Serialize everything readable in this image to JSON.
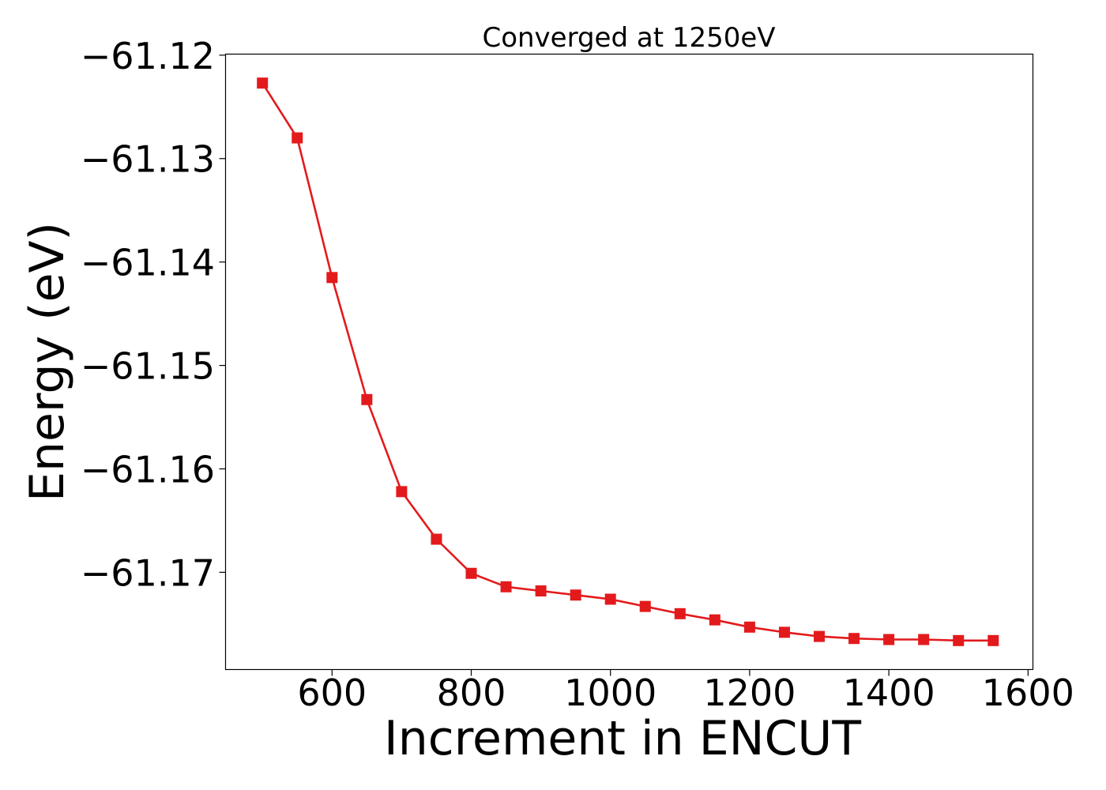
{
  "chart_data": {
    "type": "line",
    "title": "Converged at 1250eV",
    "xlabel": "Increment in ENCUT",
    "ylabel": "Energy (eV)",
    "xlim": [
      447,
      1607
    ],
    "ylim": [
      -61.1794,
      -61.1199
    ],
    "xticks": [
      600,
      800,
      1000,
      1200,
      1400,
      1600
    ],
    "yticks": [
      -61.17,
      -61.16,
      -61.15,
      -61.14,
      -61.13,
      -61.12
    ],
    "ytick_labels": [
      "−61.17",
      "−61.16",
      "−61.15",
      "−61.14",
      "−61.13",
      "−61.12"
    ],
    "grid": false,
    "marker": "square",
    "colors": {
      "series": "#e31a1c"
    },
    "series": [
      {
        "x": [
          500,
          550,
          600,
          650,
          700,
          750,
          800,
          850,
          900,
          950,
          1000,
          1050,
          1100,
          1150,
          1200,
          1250,
          1300,
          1350,
          1400,
          1450,
          1500,
          1550
        ],
        "y": [
          -61.1227,
          -61.128,
          -61.1415,
          -61.1533,
          -61.1622,
          -61.1668,
          -61.1701,
          -61.1714,
          -61.1718,
          -61.1722,
          -61.1726,
          -61.1733,
          -61.174,
          -61.1746,
          -61.1753,
          -61.1758,
          -61.1762,
          -61.1764,
          -61.1765,
          -61.1765,
          -61.1766,
          -61.1766
        ]
      }
    ]
  }
}
